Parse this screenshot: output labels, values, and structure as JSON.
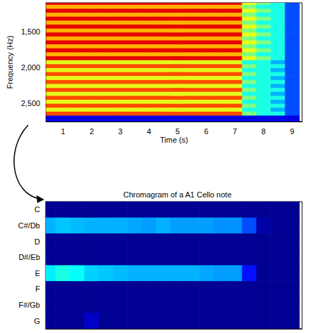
{
  "chart_data": [
    {
      "type": "heatmap",
      "x_label": "Time (s)",
      "y_label": "Frequency (Hz)",
      "xlim": [
        0.4,
        9.35
      ],
      "xticks": [
        1,
        2,
        3,
        4,
        5,
        6,
        7,
        8,
        9
      ],
      "ylim": [
        1100,
        2750
      ],
      "yticks": [
        1500,
        2000,
        2500
      ],
      "times": [
        0.5,
        1,
        1.5,
        2,
        2.5,
        3,
        3.5,
        4,
        4.5,
        5,
        5.5,
        6,
        6.5,
        7,
        7.5,
        8,
        8.5,
        9
      ],
      "frequencies": [
        1100,
        1155,
        1210,
        1265,
        1320,
        1375,
        1430,
        1485,
        1540,
        1595,
        1650,
        1705,
        1760,
        1815,
        1870,
        1925,
        1980,
        2035,
        2090,
        2145,
        2200,
        2255,
        2310,
        2365,
        2420,
        2475,
        2530,
        2585,
        2640,
        2695,
        2750
      ],
      "cells": [
        [
          9,
          9,
          9,
          9,
          9,
          9,
          9,
          9,
          9,
          9,
          9,
          9,
          9,
          9,
          6,
          5,
          4,
          2
        ],
        [
          7,
          7,
          7,
          7,
          7,
          7,
          7,
          7,
          7,
          7,
          7,
          7,
          7,
          7,
          5,
          4,
          4,
          2
        ],
        [
          9,
          9,
          9,
          9,
          9,
          9,
          9,
          9,
          9,
          9,
          9,
          9,
          9,
          9,
          6,
          5,
          4,
          2
        ],
        [
          7,
          7,
          7,
          7,
          7,
          7,
          7,
          7,
          7,
          7,
          7,
          7,
          7,
          7,
          5,
          4,
          4,
          2
        ],
        [
          9,
          9,
          9,
          9,
          9,
          9,
          9,
          9,
          9,
          9,
          9,
          9,
          9,
          9,
          6,
          5,
          4,
          2
        ],
        [
          7,
          7,
          7,
          7,
          7,
          7,
          7,
          7,
          7,
          7,
          7,
          7,
          7,
          7,
          5,
          4,
          4,
          2
        ],
        [
          9,
          9,
          9,
          9,
          9,
          9,
          9,
          9,
          9,
          9,
          9,
          9,
          9,
          9,
          6,
          5,
          4,
          2
        ],
        [
          7,
          7,
          7,
          7,
          7,
          7,
          7,
          7,
          7,
          7,
          7,
          7,
          7,
          7,
          5,
          4,
          4,
          2
        ],
        [
          9,
          9,
          9,
          9,
          9,
          9,
          9,
          9,
          9,
          9,
          9,
          9,
          9,
          9,
          6,
          5,
          4,
          2
        ],
        [
          7,
          7,
          7,
          7,
          7,
          7,
          7,
          7,
          7,
          7,
          7,
          7,
          7,
          7,
          5,
          4,
          4,
          2
        ],
        [
          9,
          9,
          9,
          9,
          9,
          9,
          9,
          9,
          9,
          9,
          9,
          9,
          9,
          9,
          6,
          5,
          4,
          2
        ],
        [
          7,
          7,
          7,
          7,
          7,
          7,
          7,
          7,
          7,
          7,
          7,
          7,
          7,
          7,
          5,
          4,
          4,
          2
        ],
        [
          9,
          9,
          9,
          9,
          9,
          9,
          9,
          9,
          9,
          9,
          9,
          9,
          9,
          9,
          6,
          5,
          4,
          2
        ],
        [
          7,
          7,
          7,
          7,
          7,
          7,
          7,
          7,
          7,
          7,
          7,
          7,
          7,
          7,
          5,
          4,
          4,
          2
        ],
        [
          9,
          9,
          9,
          9,
          9,
          9,
          9,
          9,
          9,
          9,
          9,
          9,
          9,
          9,
          6,
          5,
          4,
          2
        ],
        [
          6,
          6,
          6,
          6,
          6,
          6,
          6,
          6,
          6,
          6,
          6,
          6,
          6,
          6,
          4,
          4,
          3,
          2
        ],
        [
          8,
          8,
          8,
          8,
          8,
          8,
          8,
          8,
          8,
          8,
          8,
          8,
          8,
          8,
          5,
          4,
          4,
          2
        ],
        [
          6,
          6,
          6,
          6,
          6,
          6,
          6,
          6,
          6,
          6,
          6,
          6,
          6,
          6,
          4,
          4,
          3,
          2
        ],
        [
          8,
          8,
          8,
          8,
          8,
          8,
          8,
          8,
          8,
          8,
          8,
          8,
          8,
          8,
          5,
          4,
          4,
          2
        ],
        [
          6,
          6,
          6,
          6,
          6,
          6,
          6,
          6,
          6,
          6,
          6,
          6,
          6,
          6,
          4,
          4,
          3,
          2
        ],
        [
          8,
          8,
          8,
          8,
          8,
          8,
          8,
          8,
          8,
          8,
          8,
          8,
          8,
          8,
          5,
          4,
          4,
          2
        ],
        [
          6,
          6,
          6,
          6,
          6,
          6,
          6,
          6,
          6,
          6,
          6,
          6,
          6,
          6,
          4,
          4,
          3,
          2
        ],
        [
          8,
          8,
          8,
          8,
          8,
          8,
          8,
          8,
          8,
          8,
          8,
          8,
          8,
          8,
          5,
          4,
          4,
          2
        ],
        [
          6,
          6,
          6,
          6,
          6,
          6,
          6,
          6,
          6,
          6,
          6,
          6,
          6,
          6,
          4,
          4,
          3,
          2
        ],
        [
          8,
          8,
          8,
          8,
          8,
          8,
          8,
          8,
          8,
          8,
          8,
          8,
          8,
          8,
          5,
          4,
          4,
          2
        ],
        [
          6,
          6,
          6,
          6,
          6,
          6,
          6,
          6,
          6,
          6,
          6,
          6,
          6,
          6,
          4,
          4,
          3,
          2
        ],
        [
          8,
          8,
          8,
          8,
          8,
          8,
          8,
          8,
          8,
          8,
          8,
          8,
          8,
          8,
          5,
          4,
          4,
          2
        ],
        [
          6,
          6,
          6,
          6,
          6,
          6,
          6,
          6,
          6,
          6,
          6,
          6,
          6,
          6,
          4,
          4,
          3,
          2
        ],
        [
          8,
          8,
          8,
          8,
          8,
          8,
          8,
          8,
          8,
          8,
          8,
          8,
          8,
          8,
          5,
          4,
          4,
          2
        ],
        [
          1,
          1,
          1,
          1,
          1,
          1,
          1,
          1,
          1,
          1,
          1,
          1,
          1,
          1,
          1,
          1,
          1,
          1
        ],
        [
          1,
          1,
          1,
          1,
          1,
          1,
          1,
          1,
          1,
          1,
          1,
          1,
          1,
          1,
          1,
          1,
          1,
          1
        ]
      ],
      "color_range": [
        0,
        10
      ]
    },
    {
      "type": "heatmap",
      "title": "Chromagram of a A1 Cello note",
      "categories": [
        "C",
        "C#/Db",
        "D",
        "D#/Eb",
        "E",
        "F",
        "F#/Gb",
        "G"
      ],
      "xlim": [
        0.4,
        9.35
      ],
      "times": [
        0.5,
        1,
        1.5,
        2,
        2.5,
        3,
        3.5,
        4,
        4.5,
        5,
        5.5,
        6,
        6.5,
        7,
        7.5,
        8,
        8.5,
        9
      ],
      "cells": [
        [
          0.02,
          0.02,
          0.02,
          0.02,
          0.02,
          0.02,
          0.02,
          0.02,
          0.02,
          0.02,
          0.02,
          0.02,
          0.02,
          0.02,
          0.02,
          0.02,
          0.02,
          0.02
        ],
        [
          0.3,
          0.32,
          0.31,
          0.3,
          0.3,
          0.3,
          0.29,
          0.28,
          0.3,
          0.28,
          0.28,
          0.28,
          0.27,
          0.27,
          0.2,
          0.04,
          0.02,
          0.02
        ],
        [
          0.02,
          0.02,
          0.02,
          0.02,
          0.02,
          0.02,
          0.02,
          0.02,
          0.02,
          0.02,
          0.02,
          0.02,
          0.02,
          0.02,
          0.02,
          0.02,
          0.02,
          0.02
        ],
        [
          0.02,
          0.02,
          0.02,
          0.02,
          0.02,
          0.02,
          0.02,
          0.02,
          0.02,
          0.02,
          0.02,
          0.02,
          0.02,
          0.02,
          0.02,
          0.02,
          0.02,
          0.02
        ],
        [
          0.36,
          0.4,
          0.38,
          0.33,
          0.32,
          0.31,
          0.3,
          0.3,
          0.3,
          0.3,
          0.3,
          0.29,
          0.28,
          0.28,
          0.14,
          0.02,
          0.02,
          0.02
        ],
        [
          0.02,
          0.02,
          0.02,
          0.02,
          0.02,
          0.02,
          0.02,
          0.02,
          0.02,
          0.02,
          0.02,
          0.02,
          0.02,
          0.02,
          0.02,
          0.02,
          0.02,
          0.02
        ],
        [
          0.02,
          0.02,
          0.02,
          0.02,
          0.02,
          0.02,
          0.02,
          0.02,
          0.02,
          0.02,
          0.02,
          0.02,
          0.02,
          0.02,
          0.02,
          0.02,
          0.02,
          0.02
        ],
        [
          0.02,
          0.02,
          0.02,
          0.07,
          0.02,
          0.02,
          0.02,
          0.02,
          0.02,
          0.02,
          0.02,
          0.02,
          0.02,
          0.02,
          0.02,
          0.02,
          0.02,
          0.02
        ]
      ],
      "color_range": [
        0,
        1
      ],
      "tick_labels": "y"
    }
  ]
}
